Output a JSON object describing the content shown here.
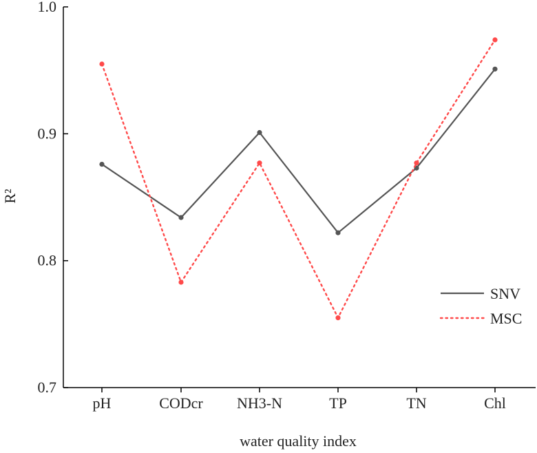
{
  "chart_data": {
    "type": "line",
    "title": "",
    "xlabel": "water quality index",
    "ylabel": "R²",
    "categories": [
      "pH",
      "CODcr",
      "NH3-N",
      "TP",
      "TN",
      "Chl"
    ],
    "ylim": [
      0.7,
      1.0
    ],
    "yticks": [
      "0.7",
      "0.8",
      "0.9",
      "1.0"
    ],
    "grid": false,
    "legend_position": "right",
    "series": [
      {
        "name": "SNV",
        "values": [
          0.876,
          0.834,
          0.901,
          0.822,
          0.873,
          0.951
        ],
        "color": "#555555",
        "style": "solid"
      },
      {
        "name": "MSC",
        "values": [
          0.955,
          0.783,
          0.877,
          0.755,
          0.877,
          0.974
        ],
        "color": "#ff4a4a",
        "style": "dotted"
      }
    ]
  }
}
